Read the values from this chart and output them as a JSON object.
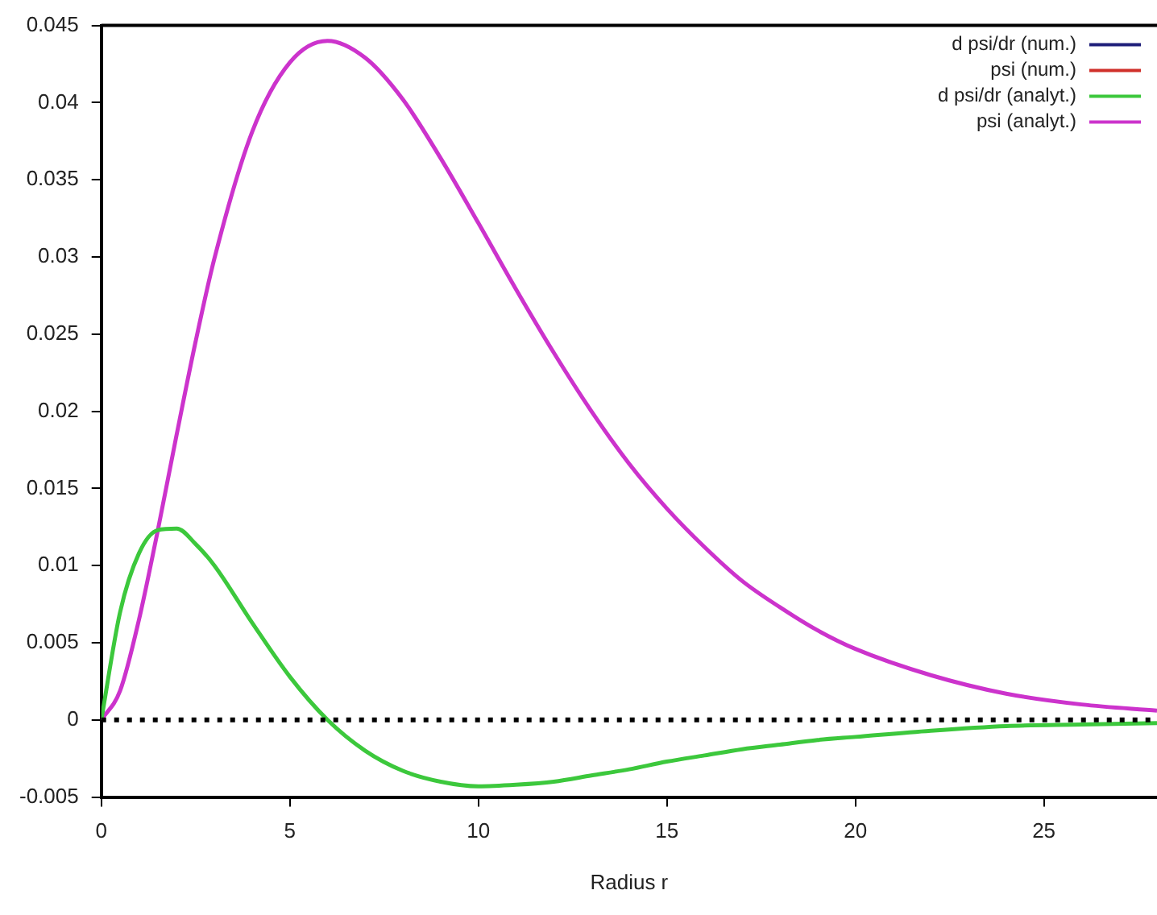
{
  "chart_data": {
    "type": "line",
    "xlabel": "Radius r",
    "x": [
      0,
      0.5,
      1,
      1.5,
      2,
      2.5,
      3,
      4,
      5,
      6,
      7,
      8,
      9,
      10,
      11,
      12,
      13,
      14,
      15,
      16,
      17,
      18,
      19,
      20,
      22,
      24,
      26,
      28
    ],
    "series": [
      {
        "name": "d psi/dr (num.)",
        "color": "#1f1f7a",
        "values": [
          null,
          null,
          null,
          null,
          null,
          null,
          null,
          null,
          null,
          null,
          null,
          null,
          null,
          null,
          null,
          null,
          null,
          null,
          null,
          null,
          null,
          null,
          null,
          null,
          null,
          null,
          null,
          null
        ]
      },
      {
        "name": "psi (num.)",
        "color": "#d0302a",
        "values": [
          null,
          null,
          null,
          null,
          null,
          null,
          null,
          null,
          null,
          null,
          null,
          null,
          null,
          null,
          null,
          null,
          null,
          null,
          null,
          null,
          null,
          null,
          null,
          null,
          null,
          null,
          null,
          null
        ]
      },
      {
        "name": "d psi/dr (analyt.)",
        "color": "#3cc83c",
        "values": [
          0,
          0.007,
          0.0108,
          0.0123,
          0.0124,
          0.0114,
          0.01,
          0.0063,
          0.0028,
          0,
          -0.002,
          -0.0033,
          -0.004,
          -0.0043,
          -0.0042,
          -0.004,
          -0.0036,
          -0.0032,
          -0.0027,
          -0.0023,
          -0.0019,
          -0.0016,
          -0.0013,
          -0.0011,
          -0.0007,
          -0.0004,
          -0.0003,
          -0.0002
        ]
      },
      {
        "name": "psi (analyt.)",
        "color": "#cc33cc",
        "values": [
          0,
          0.0019,
          0.0065,
          0.0123,
          0.0185,
          0.0245,
          0.0299,
          0.0381,
          0.0426,
          0.044,
          0.0429,
          0.0402,
          0.0364,
          0.0322,
          0.0279,
          0.0238,
          0.02,
          0.0166,
          0.0137,
          0.0112,
          0.009,
          0.0073,
          0.0058,
          0.0046,
          0.0029,
          0.0017,
          0.001,
          0.0006
        ]
      }
    ],
    "xlim": [
      0,
      28
    ],
    "xticks": [
      0,
      5,
      10,
      15,
      20,
      25
    ],
    "ylim": [
      -0.005,
      0.045
    ],
    "yticks": [
      -0.005,
      0,
      0.005,
      0.01,
      0.015,
      0.02,
      0.025,
      0.03,
      0.035,
      0.04,
      0.045
    ],
    "ref_lines": [
      {
        "axis": "y",
        "value": 0,
        "color": "#000000",
        "line_style": "dotted"
      }
    ],
    "legend": "top right",
    "grid": false,
    "marker": "none",
    "line_style": "solid"
  }
}
